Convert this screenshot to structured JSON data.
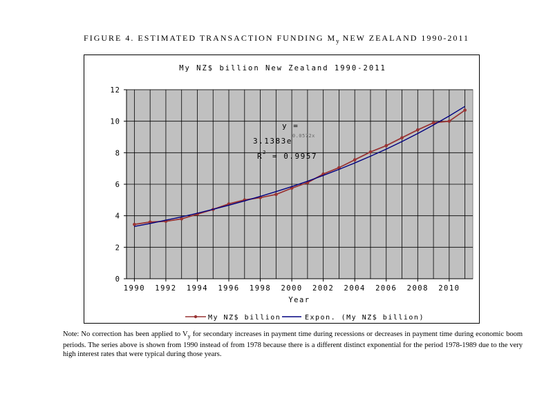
{
  "figure": {
    "title_prefix": "FIGURE 4. ESTIMATED TRANSACTION FUNDING M",
    "title_sub": "y",
    "title_suffix": " NEW ZEALAND 1990-2011"
  },
  "note": {
    "prefix": "Note:  No correction has been applied to V",
    "sub": "y",
    "suffix": " for secondary increases in payment time during recessions or decreases in payment time during economic boom periods. The series above is shown from 1990 instead of from 1978 because there is a different distinct exponential for the period 1978-1989 due to the very high interest rates that were typical during those years."
  },
  "chart_data": {
    "type": "line",
    "title": "My NZ$ billion New Zealand 1990-2011",
    "xlabel": "Year",
    "ylabel": "",
    "xlim": [
      1989.5,
      2011.5
    ],
    "ylim": [
      0,
      12
    ],
    "x_ticks": [
      1990,
      1992,
      1994,
      1996,
      1998,
      2000,
      2002,
      2004,
      2006,
      2008,
      2010
    ],
    "y_ticks": [
      0,
      2,
      4,
      6,
      8,
      10,
      12
    ],
    "grid": true,
    "plot_background": "#c0c0c0",
    "legend_position": "bottom",
    "series": [
      {
        "name": "My NZ$ billion",
        "color": "#993333",
        "marker": "circle",
        "x": [
          1990,
          1991,
          1992,
          1993,
          1994,
          1995,
          1996,
          1997,
          1998,
          1999,
          2000,
          2001,
          2002,
          2003,
          2004,
          2005,
          2006,
          2007,
          2008,
          2009,
          2010,
          2011
        ],
        "values": [
          3.45,
          3.6,
          3.65,
          3.8,
          4.1,
          4.4,
          4.75,
          5.0,
          5.15,
          5.35,
          5.75,
          6.1,
          6.65,
          7.05,
          7.55,
          8.05,
          8.45,
          8.95,
          9.45,
          9.9,
          10.0,
          10.7
        ]
      },
      {
        "name": "Expon. (My NZ$ billion)",
        "color": "#000080",
        "marker": "none",
        "x": [
          1990,
          1991,
          1992,
          1993,
          1994,
          1995,
          1996,
          1997,
          1998,
          1999,
          2000,
          2001,
          2002,
          2003,
          2004,
          2005,
          2006,
          2007,
          2008,
          2009,
          2010,
          2011
        ],
        "values": [
          3.32,
          3.51,
          3.72,
          3.93,
          4.16,
          4.41,
          4.67,
          4.94,
          5.23,
          5.53,
          5.85,
          6.19,
          6.56,
          6.94,
          7.35,
          7.78,
          8.23,
          8.71,
          9.22,
          9.76,
          10.33,
          10.94
        ]
      }
    ],
    "annotation": {
      "line1": "y =",
      "line2_base": "3.1383e",
      "line2_exp": "0.0572x",
      "line3_base": "R",
      "line3_exp": "2",
      "line3_rest": " = 0.9957"
    }
  }
}
